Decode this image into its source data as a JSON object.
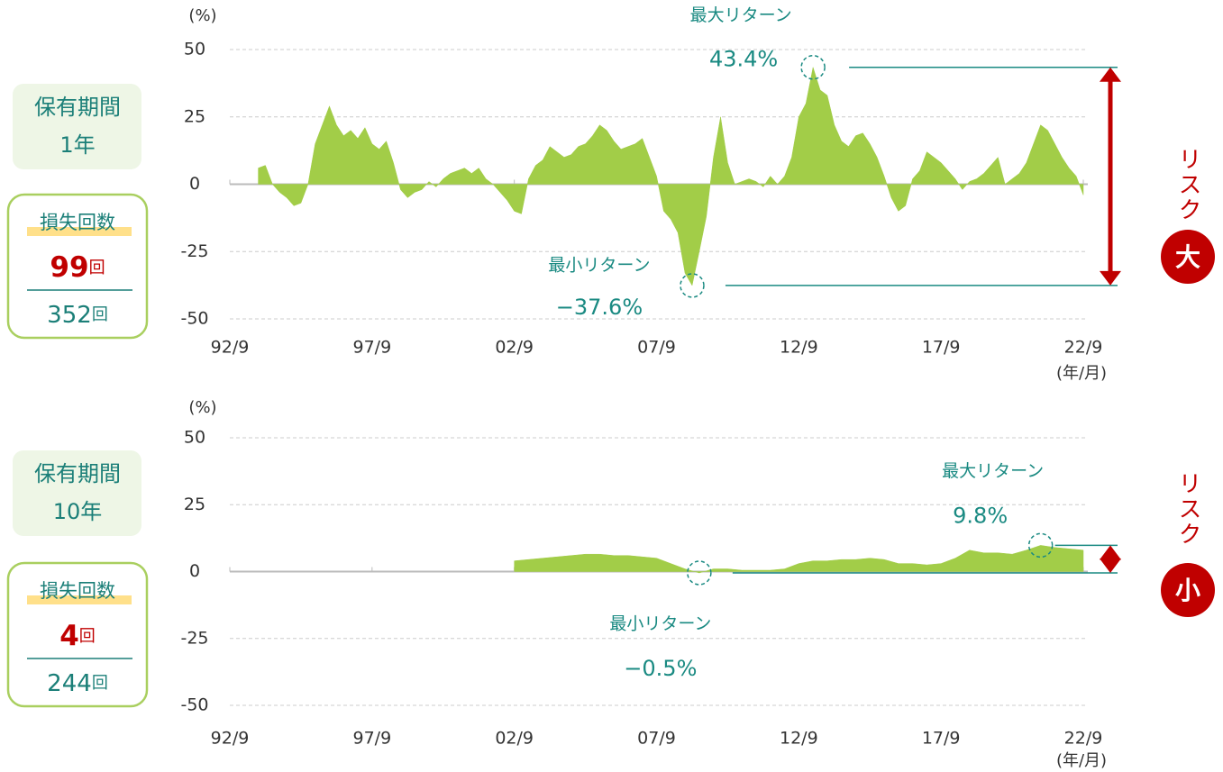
{
  "chart_data": [
    {
      "type": "area",
      "y_unit": "(%)",
      "x_unit": "(年/月)",
      "holding": {
        "label": "保有期間",
        "period": "1年"
      },
      "loss": {
        "label": "損失回数",
        "count": 99,
        "count_unit": "回",
        "total": 352,
        "total_unit": "回"
      },
      "risk": {
        "label": "リスク",
        "level": "大"
      },
      "color": "#a2cd48",
      "x": [
        "93/9",
        "93/12",
        "94/3",
        "94/6",
        "94/9",
        "94/12",
        "95/3",
        "95/6",
        "95/9",
        "95/12",
        "96/3",
        "96/6",
        "96/9",
        "96/12",
        "97/3",
        "97/6",
        "97/9",
        "97/12",
        "98/3",
        "98/6",
        "98/9",
        "98/12",
        "99/3",
        "99/6",
        "99/9",
        "99/12",
        "00/3",
        "00/6",
        "00/9",
        "00/12",
        "01/3",
        "01/6",
        "01/9",
        "01/12",
        "02/3",
        "02/6",
        "02/9",
        "02/12",
        "03/3",
        "03/6",
        "03/9",
        "03/12",
        "04/3",
        "04/6",
        "04/9",
        "04/12",
        "05/3",
        "05/6",
        "05/9",
        "05/12",
        "06/3",
        "06/6",
        "06/9",
        "06/12",
        "07/3",
        "07/6",
        "07/9",
        "07/12",
        "08/3",
        "08/6",
        "08/9",
        "08/12",
        "09/3",
        "09/6",
        "09/9",
        "09/12",
        "10/3",
        "10/6",
        "10/9",
        "10/12",
        "11/3",
        "11/6",
        "11/9",
        "11/12",
        "12/3",
        "12/6",
        "12/9",
        "12/12",
        "13/3",
        "13/6",
        "13/9",
        "13/12",
        "14/3",
        "14/6",
        "14/9",
        "14/12",
        "15/3",
        "15/6",
        "15/9",
        "15/12",
        "16/3",
        "16/6",
        "16/9",
        "16/12",
        "17/3",
        "17/6",
        "17/9",
        "17/12",
        "18/3",
        "18/6",
        "18/9",
        "18/12",
        "19/3",
        "19/6",
        "19/9",
        "19/12",
        "20/3",
        "20/6",
        "20/9",
        "20/12",
        "21/3",
        "21/6",
        "21/9",
        "21/12",
        "22/3",
        "22/6",
        "22/9"
      ],
      "values": [
        6,
        7,
        0,
        -3,
        -5,
        -8,
        -7,
        0,
        15,
        22,
        29,
        22,
        18,
        20,
        17,
        21,
        15,
        13,
        16,
        8,
        -2,
        -5,
        -3,
        -2,
        1,
        -1,
        2,
        4,
        5,
        6,
        4,
        6,
        2,
        0,
        -3,
        -6,
        -10,
        -11,
        2,
        7,
        9,
        14,
        12,
        10,
        11,
        14,
        15,
        18,
        22,
        20,
        16,
        13,
        14,
        15,
        17,
        10,
        3,
        -10,
        -13,
        -18,
        -33,
        -37.6,
        -25,
        -12,
        10,
        25,
        8,
        0,
        1,
        2,
        1,
        -1,
        3,
        0,
        3,
        10,
        25,
        30,
        43.4,
        35,
        33,
        22,
        16,
        14,
        18,
        19,
        15,
        10,
        3,
        -5,
        -10,
        -8,
        2,
        5,
        12,
        10,
        8,
        5,
        2,
        -2,
        1,
        2,
        4,
        7,
        10,
        0,
        2,
        4,
        8,
        15,
        22,
        20,
        15,
        10,
        6,
        3,
        -4
      ],
      "xlim": [
        "92/9",
        "22/9"
      ],
      "xticks": [
        "92/9",
        "97/9",
        "02/9",
        "07/9",
        "12/9",
        "17/9",
        "22/9"
      ],
      "ylim": [
        -50,
        50
      ],
      "yticks": [
        50,
        25,
        0,
        -25,
        -50
      ],
      "grid": true,
      "annotations": [
        {
          "label": "最大リターン",
          "x": "13/3",
          "value": 43.4,
          "value_label": "43.4%"
        },
        {
          "label": "最小リターン",
          "x": "08/12",
          "value": -37.6,
          "value_label": "−37.6%"
        }
      ]
    },
    {
      "type": "area",
      "y_unit": "(%)",
      "x_unit": "(年/月)",
      "holding": {
        "label": "保有期間",
        "period": "10年"
      },
      "loss": {
        "label": "損失回数",
        "count": 4,
        "count_unit": "回",
        "total": 244,
        "total_unit": "回"
      },
      "risk": {
        "label": "リスク",
        "level": "小"
      },
      "color": "#a2cd48",
      "x": [
        "02/9",
        "03/3",
        "03/9",
        "04/3",
        "04/9",
        "05/3",
        "05/9",
        "06/3",
        "06/9",
        "07/3",
        "07/9",
        "08/3",
        "08/9",
        "09/3",
        "09/9",
        "10/3",
        "10/9",
        "11/3",
        "11/9",
        "12/3",
        "12/9",
        "13/3",
        "13/9",
        "14/3",
        "14/9",
        "15/3",
        "15/9",
        "16/3",
        "16/9",
        "17/3",
        "17/9",
        "18/3",
        "18/9",
        "19/3",
        "19/9",
        "20/3",
        "20/9",
        "21/3",
        "21/9",
        "22/3",
        "22/9"
      ],
      "values": [
        4,
        4.5,
        5,
        5.5,
        6,
        6.5,
        6.5,
        6,
        6,
        5.5,
        5,
        3,
        1,
        -0.5,
        1,
        1,
        0.5,
        0.5,
        0.5,
        1,
        3,
        4,
        4,
        4.5,
        4.5,
        5,
        4.5,
        3,
        3,
        2.5,
        3,
        5,
        8,
        7,
        7,
        6.5,
        8,
        9.8,
        9,
        8.5,
        8
      ],
      "xlim": [
        "92/9",
        "22/9"
      ],
      "xticks": [
        "92/9",
        "97/9",
        "02/9",
        "07/9",
        "12/9",
        "17/9",
        "22/9"
      ],
      "ylim": [
        -50,
        50
      ],
      "yticks": [
        50,
        25,
        0,
        -25,
        -50
      ],
      "grid": true,
      "annotations": [
        {
          "label": "最大リターン",
          "x": "21/3",
          "value": 9.8,
          "value_label": "9.8%"
        },
        {
          "label": "最小リターン",
          "x": "09/3",
          "value": -0.5,
          "value_label": "−0.5%"
        }
      ]
    }
  ]
}
